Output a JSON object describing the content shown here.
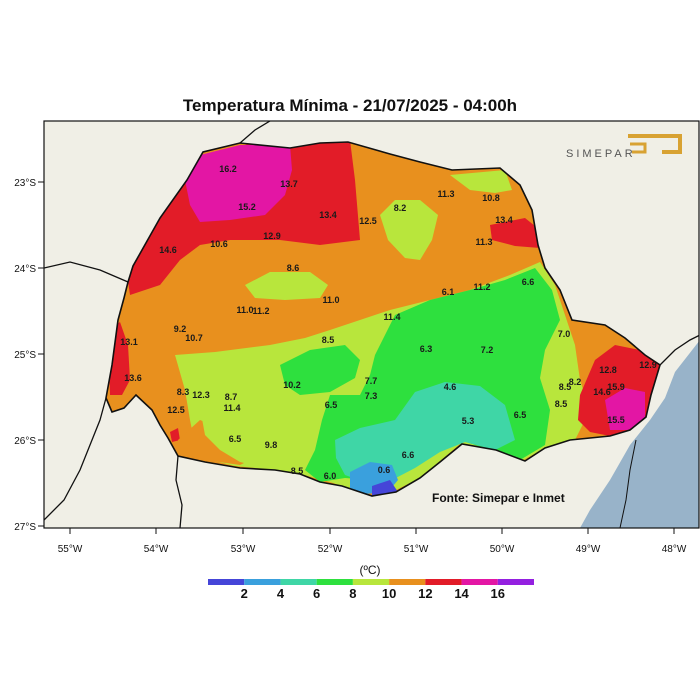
{
  "title": "Temperatura Mínima - 21/07/2025 - 04:00h",
  "source": "Fonte: Simepar e Inmet",
  "logo_text": "SIMEPAR",
  "legend": {
    "unit": "(ºC)",
    "labels": [
      "2",
      "4",
      "6",
      "8",
      "10",
      "12",
      "14",
      "16"
    ],
    "colors": [
      "#4545d8",
      "#3aa0dd",
      "#3fd6a6",
      "#2ee03e",
      "#b8e63c",
      "#e8901e",
      "#e21c28",
      "#e316a4",
      "#9420e0"
    ]
  },
  "axes": {
    "x_ticks": [
      "55°W",
      "54°W",
      "53°W",
      "52°W",
      "51°W",
      "50°W",
      "49°W",
      "48°W"
    ],
    "y_ticks": [
      "23°S",
      "24°S",
      "25°S",
      "26°S",
      "27°S"
    ]
  },
  "colors": {
    "ocean": "#98b3c9",
    "land": "#f0efe6",
    "border": "#111111"
  },
  "stations": [
    {
      "v": "16.2"
    },
    {
      "v": "13.7"
    },
    {
      "v": "15.2"
    },
    {
      "v": "13.4"
    },
    {
      "v": "12.9"
    },
    {
      "v": "12.5"
    },
    {
      "v": "8.2"
    },
    {
      "v": "11.3"
    },
    {
      "v": "10.8"
    },
    {
      "v": "13.4"
    },
    {
      "v": "11.3"
    },
    {
      "v": "14.6"
    },
    {
      "v": "10.6"
    },
    {
      "v": "8.6"
    },
    {
      "v": "11.0"
    },
    {
      "v": "6.1"
    },
    {
      "v": "11.2"
    },
    {
      "v": "6.6"
    },
    {
      "v": "11.0"
    },
    {
      "v": "11.2"
    },
    {
      "v": "11.4"
    },
    {
      "v": "9.2"
    },
    {
      "v": "10.7"
    },
    {
      "v": "7.0"
    },
    {
      "v": "13.1"
    },
    {
      "v": "8.5"
    },
    {
      "v": "6.3"
    },
    {
      "v": "7.2"
    },
    {
      "v": "12.8"
    },
    {
      "v": "12.9"
    },
    {
      "v": "13.6"
    },
    {
      "v": "10.2"
    },
    {
      "v": "7.7"
    },
    {
      "v": "8.2"
    },
    {
      "v": "8.3"
    },
    {
      "v": "12.3"
    },
    {
      "v": "4.6"
    },
    {
      "v": "8.5"
    },
    {
      "v": "14.6"
    },
    {
      "v": "15.9"
    },
    {
      "v": "8.7"
    },
    {
      "v": "7.3"
    },
    {
      "v": "12.5"
    },
    {
      "v": "11.4"
    },
    {
      "v": "6.5"
    },
    {
      "v": "8.5"
    },
    {
      "v": "5.3"
    },
    {
      "v": "6.5"
    },
    {
      "v": "15.5"
    },
    {
      "v": "6.5"
    },
    {
      "v": "9.8"
    },
    {
      "v": "6.6"
    },
    {
      "v": "8.5"
    },
    {
      "v": "0.6"
    },
    {
      "v": "6.0"
    }
  ]
}
